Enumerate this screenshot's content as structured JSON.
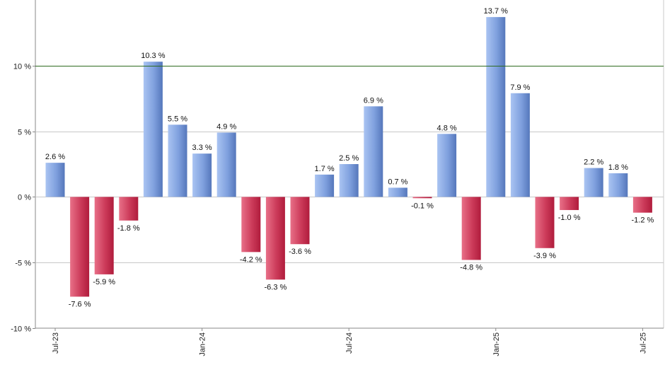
{
  "chart_data": {
    "type": "bar",
    "categories": [
      "2023-07",
      "2023-08",
      "2023-09",
      "2023-10",
      "2023-11",
      "2023-12",
      "2024-01",
      "2024-02",
      "2024-03",
      "2024-04",
      "2024-05",
      "2024-06",
      "2024-07",
      "2024-08",
      "2024-09",
      "2024-10",
      "2024-11",
      "2024-12",
      "2025-01",
      "2025-02",
      "2025-03",
      "2025-04",
      "2025-05",
      "2025-06",
      "2025-07"
    ],
    "values": [
      2.6,
      -7.6,
      -5.9,
      -1.8,
      10.3,
      5.5,
      3.3,
      4.9,
      -4.2,
      -6.3,
      -3.6,
      1.7,
      2.5,
      6.9,
      0.7,
      -0.1,
      4.8,
      -4.8,
      13.7,
      7.9,
      -3.9,
      -1.0,
      2.2,
      1.8,
      -1.2
    ],
    "value_labels": [
      "2.6 %",
      "-7.6 %",
      "-5.9 %",
      "-1.8 %",
      "10.3 %",
      "5.5 %",
      "3.3 %",
      "4.9 %",
      "-4.2 %",
      "-6.3 %",
      "-3.6 %",
      "1.7 %",
      "2.5 %",
      "6.9 %",
      "0.7 %",
      "-0.1 %",
      "4.8 %",
      "-4.8 %",
      "13.7 %",
      "7.9 %",
      "-3.9 %",
      "-1.0 %",
      "2.2 %",
      "1.8 %",
      "-1.2 %"
    ],
    "ylim": [
      -10,
      15
    ],
    "y_ticks": [
      10,
      5,
      0,
      -5,
      -10
    ],
    "y_tick_labels": [
      "10 %",
      "5 %",
      "0 %",
      "-5 %",
      "-10 %"
    ],
    "x_tick_labels": [
      {
        "index": 0,
        "label": "Jul-23"
      },
      {
        "index": 6,
        "label": "Jan-24"
      },
      {
        "index": 12,
        "label": "Jul-24"
      },
      {
        "index": 18,
        "label": "Jan-25"
      },
      {
        "index": 24,
        "label": "Jul-25"
      }
    ],
    "reference_line": {
      "value": 10,
      "color": "#2e6b1f"
    },
    "grid": true,
    "legend": "none",
    "colors": {
      "positive_light": "#aac4f2",
      "positive_dark": "#5577bb",
      "negative_light": "#e87088",
      "negative_dark": "#b01c3c",
      "grid": "#c8c8c8",
      "axis": "#888888"
    }
  }
}
